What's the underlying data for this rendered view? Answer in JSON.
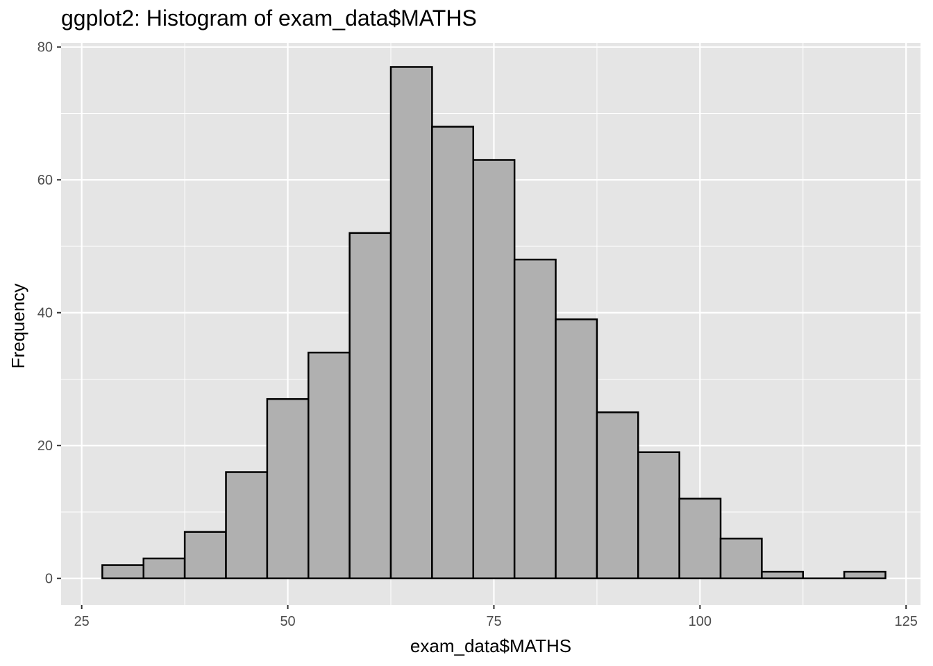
{
  "chart_data": {
    "type": "bar",
    "title": "ggplot2: Histogram of exam_data$MATHS",
    "xlabel": "exam_data$MATHS",
    "ylabel": "Frequency",
    "xlim": [
      22.5,
      126.75
    ],
    "ylim": [
      -4,
      80.6
    ],
    "x_ticks": [
      25,
      50,
      75,
      100,
      125
    ],
    "y_ticks": [
      0,
      20,
      40,
      60,
      80
    ],
    "x_minor": [
      37.5,
      62.5,
      87.5,
      112.5
    ],
    "y_minor": [
      10,
      30,
      50,
      70
    ],
    "grid": true,
    "bin_width": 5,
    "bins": [
      {
        "x0": 27.5,
        "x1": 32.5,
        "count": 2
      },
      {
        "x0": 32.5,
        "x1": 37.5,
        "count": 3
      },
      {
        "x0": 37.5,
        "x1": 42.5,
        "count": 7
      },
      {
        "x0": 42.5,
        "x1": 47.5,
        "count": 16
      },
      {
        "x0": 47.5,
        "x1": 52.5,
        "count": 27
      },
      {
        "x0": 52.5,
        "x1": 57.5,
        "count": 34
      },
      {
        "x0": 57.5,
        "x1": 62.5,
        "count": 52
      },
      {
        "x0": 62.5,
        "x1": 67.5,
        "count": 77
      },
      {
        "x0": 67.5,
        "x1": 72.5,
        "count": 68
      },
      {
        "x0": 72.5,
        "x1": 77.5,
        "count": 63
      },
      {
        "x0": 77.5,
        "x1": 82.5,
        "count": 48
      },
      {
        "x0": 82.5,
        "x1": 87.5,
        "count": 39
      },
      {
        "x0": 87.5,
        "x1": 92.5,
        "count": 25
      },
      {
        "x0": 92.5,
        "x1": 97.5,
        "count": 19
      },
      {
        "x0": 97.5,
        "x1": 102.5,
        "count": 12
      },
      {
        "x0": 102.5,
        "x1": 107.5,
        "count": 6
      },
      {
        "x0": 107.5,
        "x1": 112.5,
        "count": 1
      },
      {
        "x0": 112.5,
        "x1": 117.5,
        "count": 0
      },
      {
        "x0": 117.5,
        "x1": 122.5,
        "count": 1
      }
    ],
    "colors": {
      "panel_background": "#e5e5e5",
      "grid": "#ffffff",
      "bar_fill": "#b0b0b0",
      "bar_outline": "#000000",
      "tick_label": "#4d4d4d"
    }
  }
}
